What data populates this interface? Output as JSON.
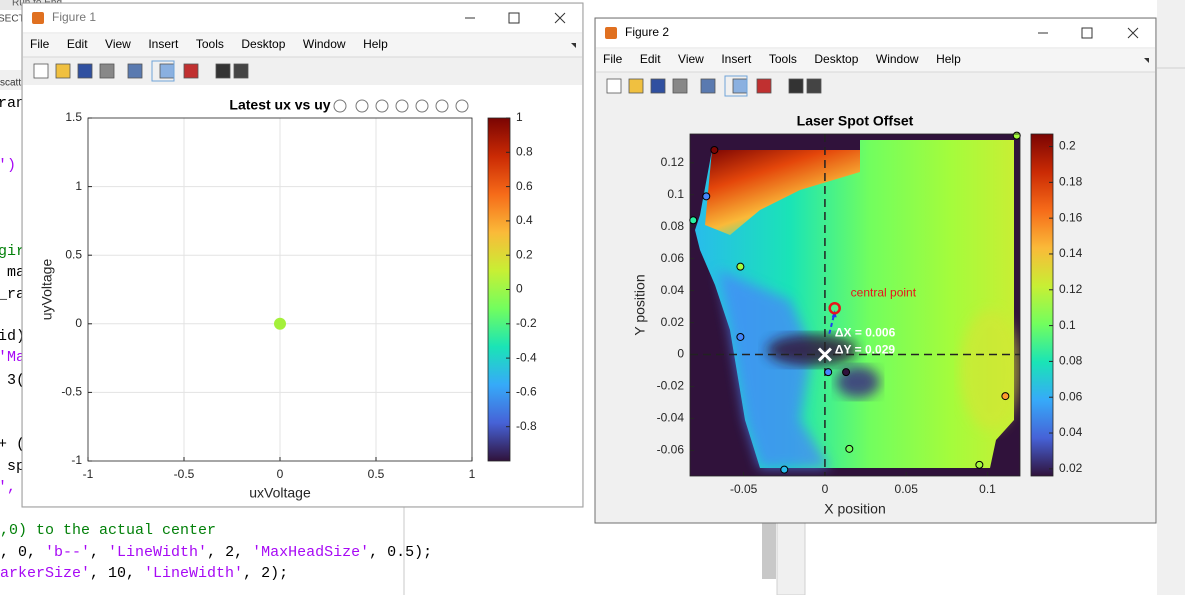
{
  "editor": {
    "tab": "Run to End",
    "section": "SECT",
    "panel": "scatt",
    "fragments": [
      {
        "text": "ran",
        "color": "#000000"
      },
      {
        "text": "')",
        "color": "#a709f5"
      },
      {
        "text": "gir",
        "color": "#028009"
      },
      {
        "text": " ma",
        "color": "#000000"
      },
      {
        "text": "_ra",
        "color": "#000000"
      },
      {
        "text": "id)",
        "color": "#000000"
      },
      {
        "text": "'Ma",
        "color": "#a709f5"
      },
      {
        "text": " 3(",
        "color": "#000000"
      },
      {
        "text": "+ (",
        "color": "#000000"
      },
      {
        "text": " sp",
        "color": "#000000"
      },
      {
        "text": "',",
        "color": "#a709f5"
      }
    ],
    "code_lines": [
      [
        {
          "text": ",0) to the actual center",
          "color": "#028009"
        }
      ],
      [
        {
          "text": ", 0, ",
          "color": "#000000"
        },
        {
          "text": "'b--'",
          "color": "#a709f5"
        },
        {
          "text": ", ",
          "color": "#000000"
        },
        {
          "text": "'LineWidth'",
          "color": "#a709f5"
        },
        {
          "text": ", 2, ",
          "color": "#000000"
        },
        {
          "text": "'MaxHeadSize'",
          "color": "#a709f5"
        },
        {
          "text": ", 0.5);",
          "color": "#000000"
        }
      ],
      [
        {
          "text": "arkerSize'",
          "color": "#a709f5"
        },
        {
          "text": ", 10, ",
          "color": "#000000"
        },
        {
          "text": "'LineWidth'",
          "color": "#a709f5"
        },
        {
          "text": ", 2);",
          "color": "#000000"
        }
      ]
    ]
  },
  "windows": [
    {
      "title": "Figure 1",
      "menu": [
        "File",
        "Edit",
        "View",
        "Insert",
        "Tools",
        "Desktop",
        "Window",
        "Help"
      ]
    },
    {
      "title": "Figure 2",
      "menu": [
        "File",
        "Edit",
        "View",
        "Insert",
        "Tools",
        "Desktop",
        "Window",
        "Help"
      ]
    }
  ],
  "chart_data": [
    {
      "type": "scatter",
      "title": "Latest ux vs uy",
      "xlabel": "uxVoltage",
      "ylabel": "uyVoltage",
      "x": [
        0
      ],
      "y": [
        0
      ],
      "color": "#a4f03a",
      "xlim": [
        -1,
        1
      ],
      "ylim": [
        -1,
        1.5
      ],
      "xticks": [
        -1,
        -0.5,
        0,
        0.5,
        1
      ],
      "yticks": [
        -1,
        -0.5,
        0,
        0.5,
        1,
        1.5
      ],
      "grid": true,
      "colorbar": {
        "colormap": "turbo",
        "lim": [
          -1,
          1
        ],
        "ticks": [
          -0.8,
          -0.6,
          -0.4,
          -0.2,
          0,
          0.2,
          0.4,
          0.6,
          0.8,
          1
        ]
      }
    },
    {
      "type": "heatmap",
      "title": "Laser Spot Offset",
      "xlabel": "X position",
      "ylabel": "Y position",
      "xlim": [
        -0.083,
        0.12
      ],
      "ylim": [
        -0.076,
        0.138
      ],
      "xticks": [
        -0.05,
        0,
        0.05,
        0.1
      ],
      "yticks": [
        -0.06,
        -0.04,
        -0.02,
        0,
        0.02,
        0.04,
        0.06,
        0.08,
        0.1,
        0.12
      ],
      "grid": false,
      "colorbar": {
        "colormap": "turbo",
        "lim": [
          0.016,
          0.207
        ],
        "ticks": [
          0.02,
          0.04,
          0.06,
          0.08,
          0.1,
          0.12,
          0.14,
          0.16,
          0.18,
          0.2
        ]
      },
      "crosshair": {
        "x": 0,
        "y": 0
      },
      "points": {
        "x": [
          -0.068,
          -0.073,
          -0.081,
          -0.052,
          -0.052,
          0.002,
          0.013,
          0.015,
          -0.025,
          0.095,
          0.111,
          0.118
        ],
        "y": [
          0.128,
          0.099,
          0.084,
          0.055,
          0.011,
          -0.011,
          -0.011,
          -0.059,
          -0.072,
          -0.069,
          -0.026,
          0.137
        ],
        "colors": [
          "#7a0403",
          "#4686fb",
          "#29efa2",
          "#a4fc3c",
          "#4686fb",
          "#4686fb",
          "#30123b",
          "#72fe5e",
          "#28bbec",
          "#a4fc3c",
          "#fe9b2d",
          "#a4fc3c"
        ]
      },
      "central_point": {
        "x": 0.006,
        "y": 0.029,
        "label": "central point",
        "color": "#e8141b"
      },
      "origin_marker": {
        "x": 0,
        "y": 0
      },
      "arrow_color": "#1f3ff0",
      "annotations": [
        "ΔX = 0.006",
        "ΔY = 0.029"
      ]
    }
  ]
}
